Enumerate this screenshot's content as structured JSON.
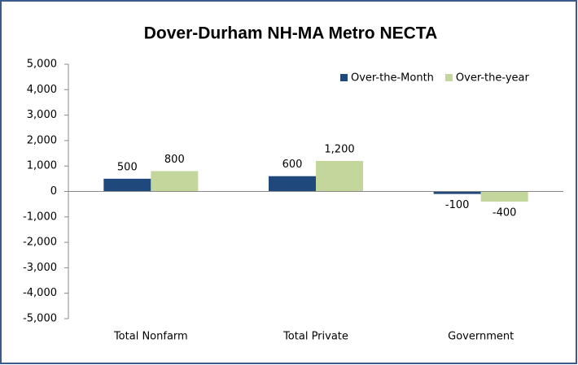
{
  "chart_data": {
    "type": "bar",
    "title": "Dover-Durham NH-MA Metro NECTA",
    "categories": [
      "Total Nonfarm",
      "Total Private",
      "Government"
    ],
    "series": [
      {
        "name": "Over-the-Month",
        "color": "#1f497d",
        "values": [
          500,
          600,
          -100
        ]
      },
      {
        "name": "Over-the-year",
        "color": "#c3d69b",
        "values": [
          800,
          1200,
          -400
        ],
        "value_labels": [
          "800",
          "1,200",
          "-400"
        ]
      }
    ],
    "ylim": [
      -5000,
      5000
    ],
    "yticks": [
      {
        "value": -5000,
        "label": "-5,000"
      },
      {
        "value": -4000,
        "label": "-4,000"
      },
      {
        "value": -3000,
        "label": "-3,000"
      },
      {
        "value": -2000,
        "label": "-2,000"
      },
      {
        "value": -1000,
        "label": "-1,000"
      },
      0,
      {
        "value": 1000,
        "label": "1,000"
      },
      {
        "value": 2000,
        "label": "2,000"
      },
      {
        "value": 3000,
        "label": "3,000"
      },
      {
        "value": 4000,
        "label": "4,000"
      },
      {
        "value": 5000,
        "label": "5,000"
      }
    ],
    "grid": false,
    "legend": "top-right"
  }
}
